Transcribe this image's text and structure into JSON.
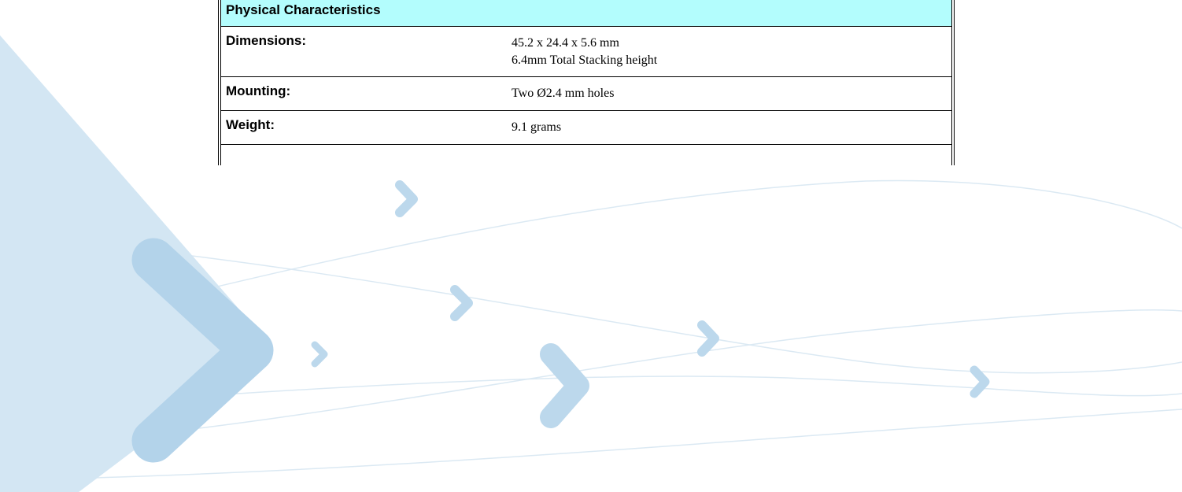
{
  "table": {
    "title": "Physical Characteristics",
    "rows": [
      {
        "label": "Dimensions:",
        "value": [
          "45.2 x 24.4 x 5.6 mm",
          "6.4mm Total Stacking height"
        ]
      },
      {
        "label": "Mounting:",
        "value": [
          "Two Ø2.4 mm holes"
        ]
      },
      {
        "label": "Weight:",
        "value": [
          "9.1 grams"
        ]
      }
    ]
  }
}
